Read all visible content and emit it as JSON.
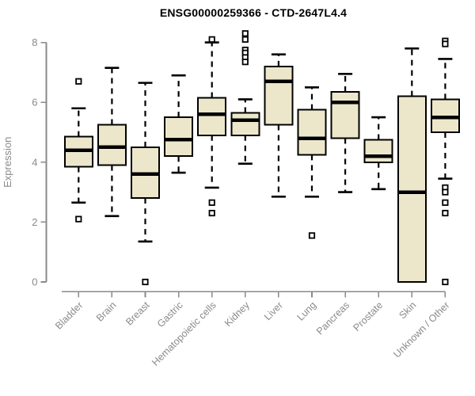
{
  "chart_data": {
    "type": "boxplot",
    "title": "ENSG00000259366 - CTD-2647L4.4",
    "xlabel": "",
    "ylabel": "Expression",
    "ylim": [
      0,
      8
    ],
    "yticks": [
      0,
      2,
      4,
      6,
      8
    ],
    "grid": false,
    "legend": false,
    "categories": [
      "Bladder",
      "Brain",
      "Breast",
      "Gastric",
      "Hematopoietic cells",
      "Kidney",
      "Liver",
      "Lung",
      "Pancreas",
      "Prostate",
      "Skin",
      "Unknown / Other"
    ],
    "boxes": [
      {
        "category": "Bladder",
        "whisker_low": 2.65,
        "q1": 3.85,
        "median": 4.4,
        "q3": 4.85,
        "whisker_high": 5.8,
        "outliers": [
          6.7,
          2.1
        ]
      },
      {
        "category": "Brain",
        "whisker_low": 2.2,
        "q1": 3.9,
        "median": 4.5,
        "q3": 5.25,
        "whisker_high": 7.15,
        "outliers": []
      },
      {
        "category": "Breast",
        "whisker_low": 1.35,
        "q1": 2.8,
        "median": 3.6,
        "q3": 4.5,
        "whisker_high": 6.65,
        "outliers": [
          0
        ]
      },
      {
        "category": "Gastric",
        "whisker_low": 3.65,
        "q1": 4.2,
        "median": 4.75,
        "q3": 5.5,
        "whisker_high": 6.9,
        "outliers": []
      },
      {
        "category": "Hematopoietic cells",
        "whisker_low": 3.15,
        "q1": 4.9,
        "median": 5.6,
        "q3": 6.15,
        "whisker_high": 8.0,
        "outliers": [
          8.1,
          2.65,
          2.3
        ]
      },
      {
        "category": "Kidney",
        "whisker_low": 3.95,
        "q1": 4.9,
        "median": 5.4,
        "q3": 5.65,
        "whisker_high": 6.1,
        "outliers": [
          8.3,
          8.1,
          7.75,
          7.65,
          7.5,
          7.35
        ]
      },
      {
        "category": "Liver",
        "whisker_low": 2.85,
        "q1": 5.25,
        "median": 6.7,
        "q3": 7.2,
        "whisker_high": 7.6,
        "outliers": []
      },
      {
        "category": "Lung",
        "whisker_low": 2.85,
        "q1": 4.25,
        "median": 4.8,
        "q3": 5.75,
        "whisker_high": 6.5,
        "outliers": [
          1.55
        ]
      },
      {
        "category": "Pancreas",
        "whisker_low": 3.0,
        "q1": 4.8,
        "median": 6.0,
        "q3": 6.35,
        "whisker_high": 6.95,
        "outliers": []
      },
      {
        "category": "Prostate",
        "whisker_low": 3.1,
        "q1": 4.0,
        "median": 4.2,
        "q3": 4.75,
        "whisker_high": 5.5,
        "outliers": []
      },
      {
        "category": "Skin",
        "whisker_low": 0.0,
        "q1": 0.0,
        "median": 3.0,
        "q3": 6.2,
        "whisker_high": 7.8,
        "outliers": []
      },
      {
        "category": "Unknown / Other",
        "whisker_low": 3.45,
        "q1": 5.0,
        "median": 5.5,
        "q3": 6.1,
        "whisker_high": 7.45,
        "outliers": [
          8.05,
          7.95,
          3.15,
          3.0,
          2.65,
          2.3,
          0
        ]
      }
    ],
    "colors": {
      "box_fill": "#ece7cb",
      "box_border": "#000000",
      "median": "#000000",
      "whisker": "#000000",
      "outlier_fill": "#ffffff",
      "axis": "#8a8a8a",
      "tick_label": "#8a8a8a",
      "title": "#000000",
      "background": "#ffffff"
    }
  }
}
